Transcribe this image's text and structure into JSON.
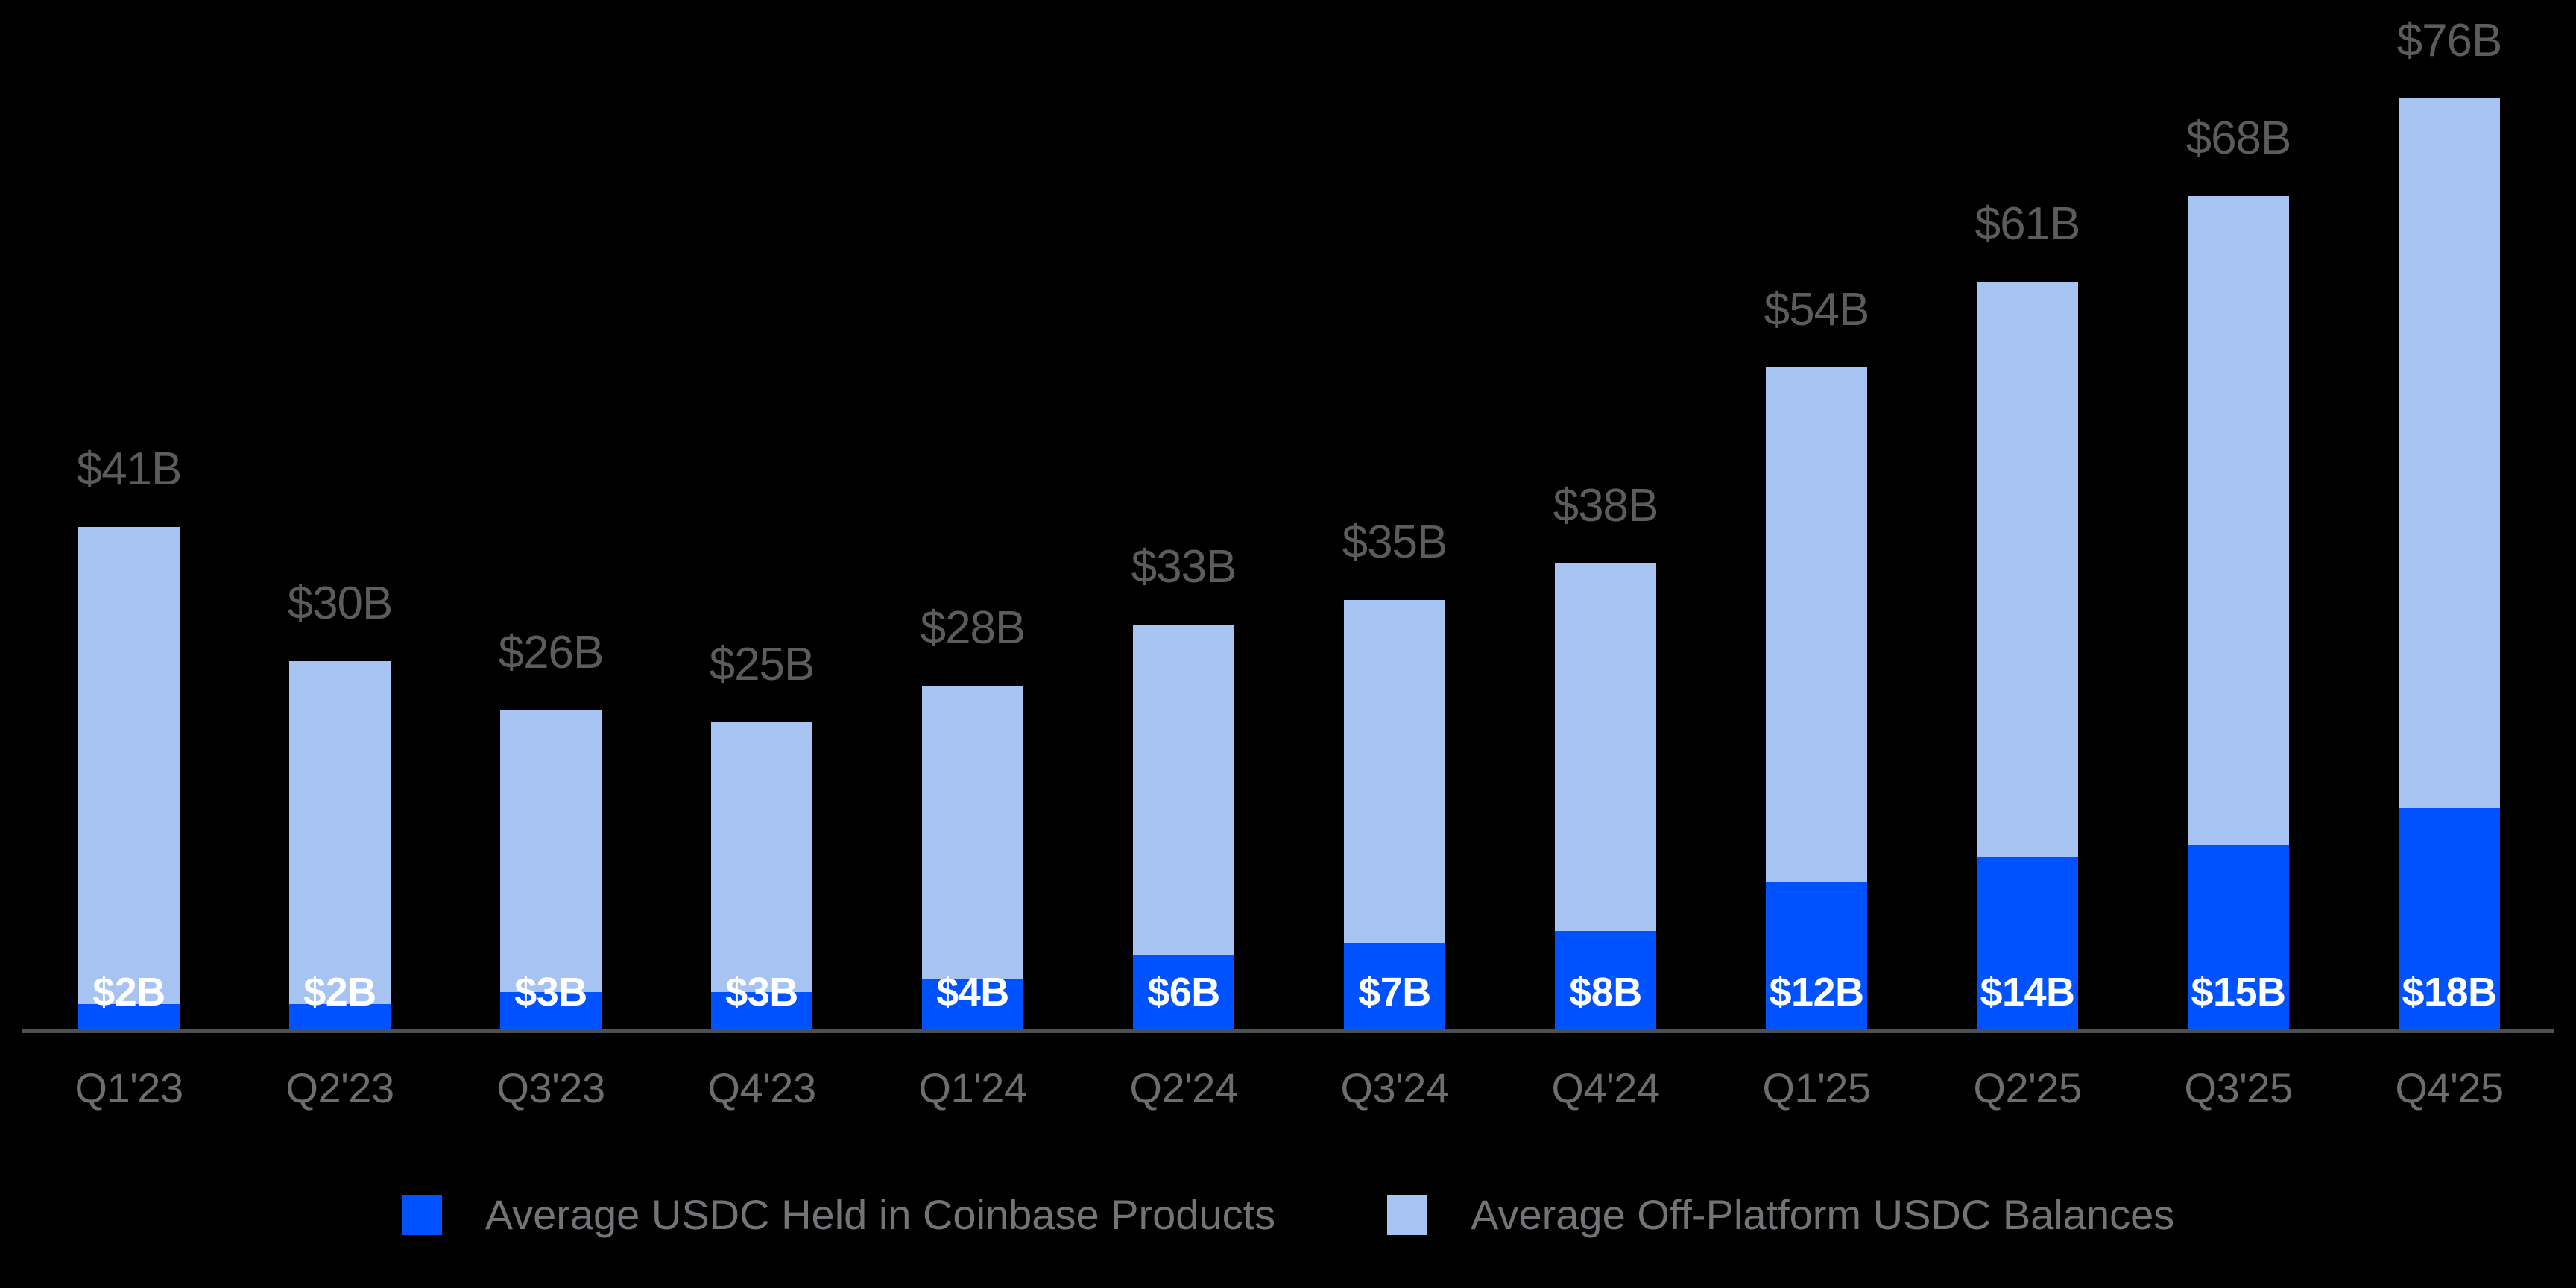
{
  "chart_data": {
    "type": "bar",
    "stacked": true,
    "title": "",
    "categories": [
      "Q1'23",
      "Q2'23",
      "Q3'23",
      "Q4'23",
      "Q1'24",
      "Q2'24",
      "Q3'24",
      "Q4'24",
      "Q1'25",
      "Q2'25",
      "Q3'25",
      "Q4'25"
    ],
    "series": [
      {
        "name": "Average USDC Held in Coinbase Products",
        "color": "#0052FF",
        "values": [
          2,
          2,
          3,
          3,
          4,
          6,
          7,
          8,
          12,
          14,
          15,
          18
        ],
        "value_labels": [
          "$2B",
          "$2B",
          "$3B",
          "$3B",
          "$4B",
          "$6B",
          "$7B",
          "$8B",
          "$12B",
          "$14B",
          "$15B",
          "$18B"
        ]
      },
      {
        "name": "Average Off-Platform USDC Balances",
        "color": "#A6C3F2",
        "values": [
          39,
          28,
          23,
          22,
          24,
          27,
          28,
          30,
          42,
          47,
          53,
          58
        ]
      }
    ],
    "totals": [
      41,
      30,
      26,
      25,
      28,
      33,
      35,
      38,
      54,
      61,
      68,
      76
    ],
    "total_labels": [
      "$41B",
      "$30B",
      "$26B",
      "$25B",
      "$28B",
      "$33B",
      "$35B",
      "$38B",
      "$54B",
      "$61B",
      "$68B",
      "$76B"
    ],
    "xlabel": "",
    "ylabel": "",
    "ylim": [
      0,
      83
    ],
    "grid": false,
    "legend_position": "bottom",
    "colors": {
      "background": "#000000",
      "axis_line": "#4F5052",
      "total_label": "#5B5C5E",
      "x_label": "#6C6D6F",
      "legend_text": "#737477",
      "value_label": "#FFFFFF"
    }
  }
}
